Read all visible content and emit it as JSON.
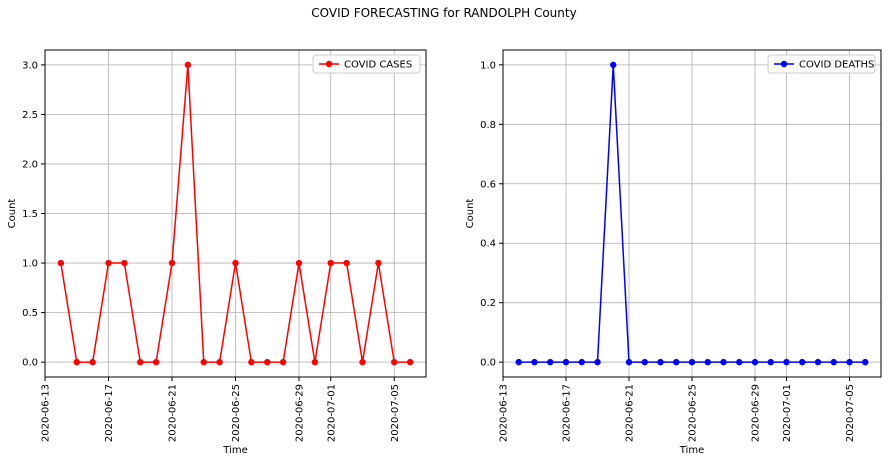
{
  "suptitle": "COVID FORECASTING for RANDOLPH County",
  "chart_data": [
    {
      "type": "line",
      "xlabel": "Time",
      "ylabel": "Count",
      "grid": true,
      "legend": "top-right",
      "ylim": [
        -0.15,
        3.15
      ],
      "yticks": [
        0.0,
        0.5,
        1.0,
        1.5,
        2.0,
        2.5,
        3.0
      ],
      "xlim": [
        "2020-06-13",
        "2020-07-07"
      ],
      "xticks": [
        "2020-06-13",
        "2020-06-17",
        "2020-06-21",
        "2020-06-25",
        "2020-06-29",
        "2020-07-01",
        "2020-07-05"
      ],
      "series": [
        {
          "name": "COVID CASES",
          "color": "#ff0000",
          "x": [
            "2020-06-14",
            "2020-06-15",
            "2020-06-16",
            "2020-06-17",
            "2020-06-18",
            "2020-06-19",
            "2020-06-20",
            "2020-06-21",
            "2020-06-22",
            "2020-06-23",
            "2020-06-24",
            "2020-06-25",
            "2020-06-26",
            "2020-06-27",
            "2020-06-28",
            "2020-06-29",
            "2020-06-30",
            "2020-07-01",
            "2020-07-02",
            "2020-07-03",
            "2020-07-04",
            "2020-07-05",
            "2020-07-06"
          ],
          "y": [
            1,
            0,
            0,
            1,
            1,
            0,
            0,
            1,
            3,
            0,
            0,
            1,
            0,
            0,
            0,
            1,
            0,
            1,
            1,
            0,
            1,
            0,
            0
          ]
        }
      ]
    },
    {
      "type": "line",
      "xlabel": "Time",
      "ylabel": "Count",
      "grid": true,
      "legend": "top-right",
      "ylim": [
        -0.05,
        1.05
      ],
      "yticks": [
        0.0,
        0.2,
        0.4,
        0.6,
        0.8,
        1.0
      ],
      "xlim": [
        "2020-06-13",
        "2020-07-07"
      ],
      "xticks": [
        "2020-06-13",
        "2020-06-17",
        "2020-06-21",
        "2020-06-25",
        "2020-06-29",
        "2020-07-01",
        "2020-07-05"
      ],
      "series": [
        {
          "name": "COVID DEATHS",
          "color": "#0000ff",
          "x": [
            "2020-06-14",
            "2020-06-15",
            "2020-06-16",
            "2020-06-17",
            "2020-06-18",
            "2020-06-19",
            "2020-06-20",
            "2020-06-21",
            "2020-06-22",
            "2020-06-23",
            "2020-06-24",
            "2020-06-25",
            "2020-06-26",
            "2020-06-27",
            "2020-06-28",
            "2020-06-29",
            "2020-06-30",
            "2020-07-01",
            "2020-07-02",
            "2020-07-03",
            "2020-07-04",
            "2020-07-05",
            "2020-07-06"
          ],
          "y": [
            0,
            0,
            0,
            0,
            0,
            0,
            1,
            0,
            0,
            0,
            0,
            0,
            0,
            0,
            0,
            0,
            0,
            0,
            0,
            0,
            0,
            0,
            0
          ]
        }
      ]
    }
  ]
}
